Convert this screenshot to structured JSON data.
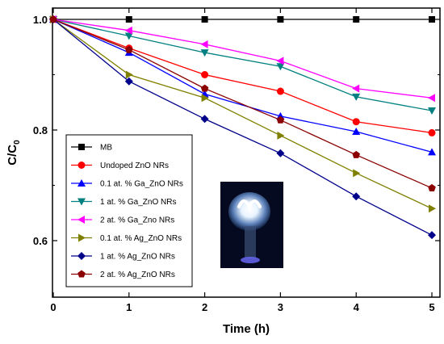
{
  "chart_data": {
    "type": "line",
    "xlabel": "Time (h)",
    "ylabel": "C/C",
    "ylabel_subscript": "0",
    "xlim": [
      0,
      5
    ],
    "ylim": [
      0.5,
      1.02
    ],
    "x_ticks": [
      0,
      1,
      2,
      3,
      4,
      5
    ],
    "y_ticks": [
      0.6,
      0.8,
      1.0
    ],
    "x_tick_labels": [
      "0",
      "1",
      "2",
      "3",
      "4",
      "5"
    ],
    "y_tick_labels": [
      "0.6",
      "0.8",
      "1.0"
    ],
    "grid": false,
    "legend_position": "bottom-left",
    "inset_image": "photo of glowing UV lamp",
    "x": [
      0,
      1,
      2,
      3,
      4,
      5
    ],
    "series": [
      {
        "name": "MB",
        "color": "#000000",
        "marker": "square",
        "values": [
          1.0,
          1.0,
          1.0,
          1.0,
          1.0,
          1.0
        ]
      },
      {
        "name": "Undoped ZnO NRs",
        "color": "#ff0000",
        "marker": "circle",
        "values": [
          1.0,
          0.948,
          0.9,
          0.87,
          0.815,
          0.795
        ]
      },
      {
        "name": "0.1 at. % Ga_ZnO NRs",
        "color": "#0000ff",
        "marker": "triangle-up",
        "values": [
          1.0,
          0.94,
          0.865,
          0.825,
          0.797,
          0.76
        ]
      },
      {
        "name": "1 at. % Ga_ZnO NRs",
        "color": "#008080",
        "marker": "triangle-down",
        "values": [
          1.0,
          0.97,
          0.94,
          0.915,
          0.86,
          0.835
        ]
      },
      {
        "name": "2 at. % Ga_Zno NRs",
        "color": "#ff00ff",
        "marker": "triangle-left",
        "values": [
          1.0,
          0.98,
          0.955,
          0.925,
          0.875,
          0.858
        ]
      },
      {
        "name": "0.1 at. % Ag_ZnO NRs",
        "color": "#808000",
        "marker": "triangle-right",
        "values": [
          1.0,
          0.9,
          0.858,
          0.79,
          0.722,
          0.658
        ]
      },
      {
        "name": "1 at. % Ag_ZnO NRs",
        "color": "#00008b",
        "marker": "diamond",
        "values": [
          1.0,
          0.888,
          0.82,
          0.758,
          0.68,
          0.61
        ]
      },
      {
        "name": "2 at. % Ag_ZnO NRs",
        "color": "#8b0000",
        "marker": "pentagon",
        "values": [
          1.0,
          0.945,
          0.875,
          0.818,
          0.755,
          0.695
        ]
      }
    ]
  }
}
